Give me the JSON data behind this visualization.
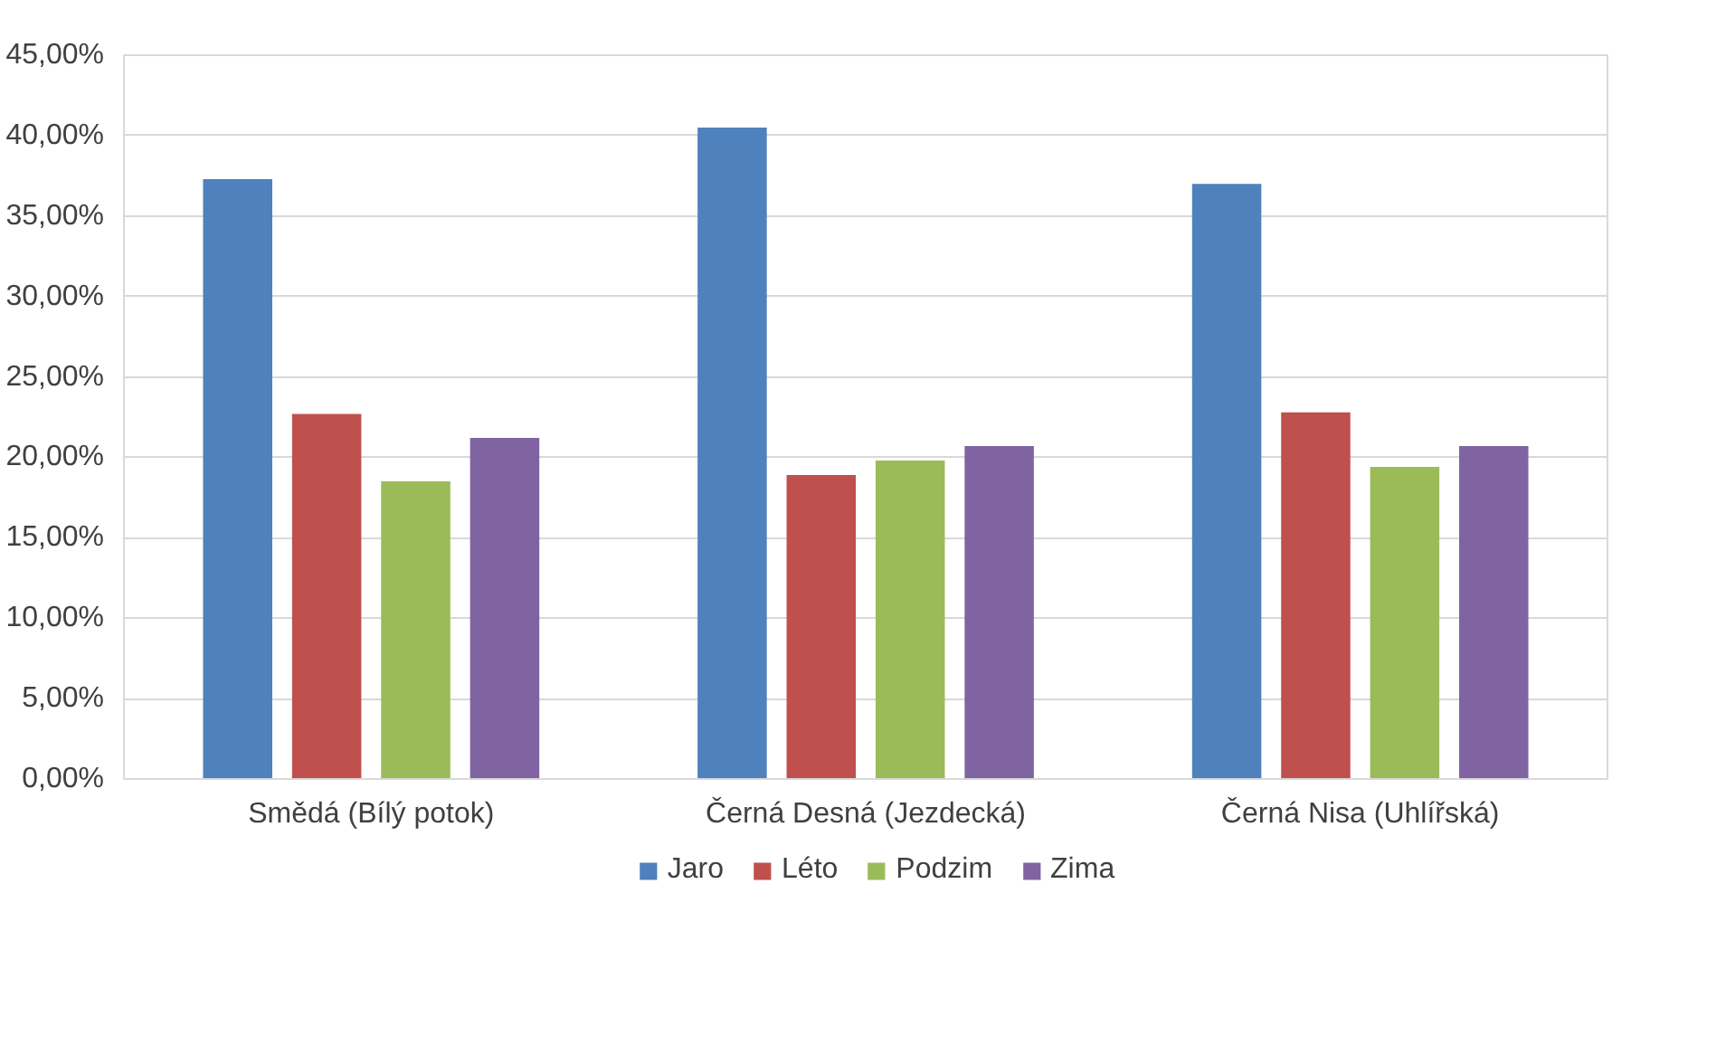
{
  "chart_data": {
    "type": "bar",
    "categories": [
      "Smědá (Bílý potok)",
      "Černá Desná (Jezdecká)",
      "Černá Nisa (Uhlířská)"
    ],
    "series": [
      {
        "name": "Jaro",
        "color": "#4f81bd",
        "values": [
          37.3,
          40.5,
          37.0
        ]
      },
      {
        "name": "Léto",
        "color": "#c0504d",
        "values": [
          22.7,
          18.9,
          22.8
        ]
      },
      {
        "name": "Podzim",
        "color": "#9bbb59",
        "values": [
          18.5,
          19.8,
          19.4
        ]
      },
      {
        "name": "Zima",
        "color": "#8064a2",
        "values": [
          21.2,
          20.7,
          20.7
        ]
      }
    ],
    "ylim": [
      0,
      45
    ],
    "yticks": [
      {
        "value": 0,
        "label": "0,00%"
      },
      {
        "value": 5,
        "label": "5,00%"
      },
      {
        "value": 10,
        "label": "10,00%"
      },
      {
        "value": 15,
        "label": "15,00%"
      },
      {
        "value": 20,
        "label": "20,00%"
      },
      {
        "value": 25,
        "label": "25,00%"
      },
      {
        "value": 30,
        "label": "30,00%"
      },
      {
        "value": 35,
        "label": "35,00%"
      },
      {
        "value": 40,
        "label": "40,00%"
      },
      {
        "value": 45,
        "label": "45,00%"
      }
    ],
    "grid": "y",
    "legend": "bottom"
  }
}
